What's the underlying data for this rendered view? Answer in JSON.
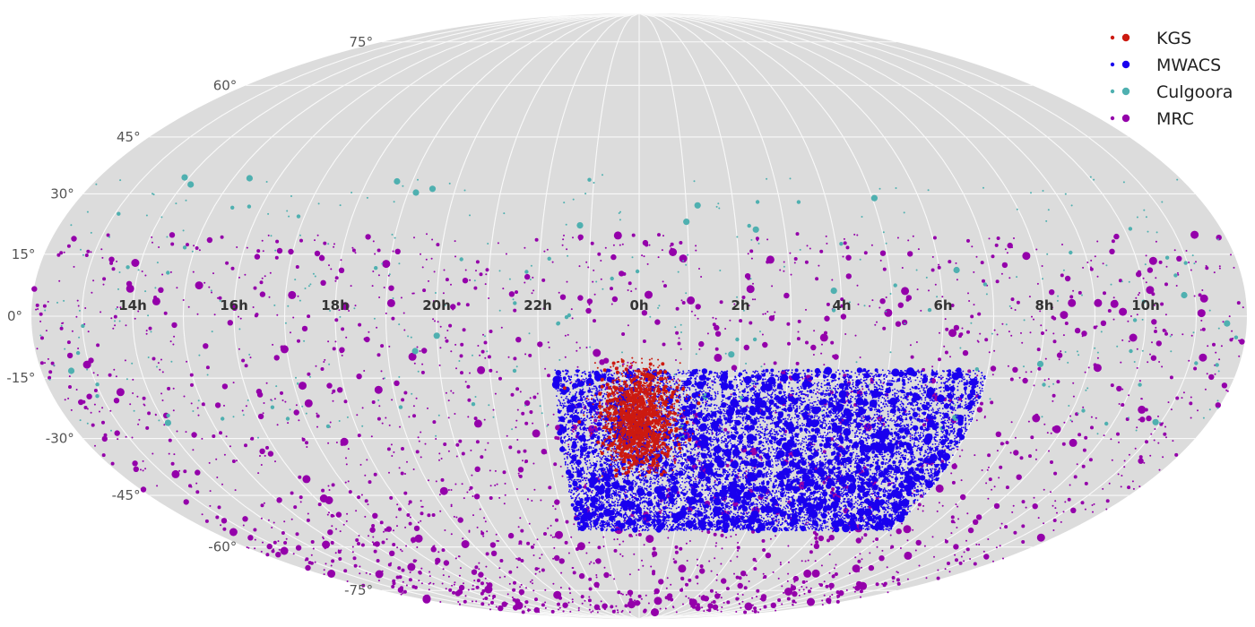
{
  "chart_data": {
    "type": "scatter",
    "projection": "mollweide",
    "background_color": "#dcdcdc",
    "grid": true,
    "legend_position": "top-right",
    "ra_tick_labels": [
      "14h",
      "16h",
      "18h",
      "20h",
      "22h",
      "0h",
      "2h",
      "4h",
      "6h",
      "8h",
      "10h"
    ],
    "ra_tick_hours": [
      14,
      16,
      18,
      20,
      22,
      0,
      2,
      4,
      6,
      8,
      10
    ],
    "dec_tick_labels": [
      "75°",
      "60°",
      "45°",
      "30°",
      "15°",
      "0°",
      "-15°",
      "-30°",
      "-45°",
      "-60°",
      "-75°"
    ],
    "dec_tick_values": [
      75,
      60,
      45,
      30,
      15,
      0,
      -15,
      -30,
      -45,
      -60,
      -75
    ],
    "series": [
      {
        "name": "MRC",
        "color": "#9400aa",
        "ra_range_h": [
          0,
          24
        ],
        "dec_range_deg": [
          -85,
          20
        ],
        "approx_points": 2600
      },
      {
        "name": "Culgoora",
        "color": "#4fb0b0",
        "ra_range_h": [
          0,
          24
        ],
        "dec_range_deg": [
          -30,
          35
        ],
        "approx_points": 420
      },
      {
        "name": "MWACS",
        "color": "#1a00ee",
        "ra_range_h": [
          22.3,
          7.0
        ],
        "dec_range_deg": [
          -55,
          -13
        ],
        "approx_points": 11000
      },
      {
        "name": "KGS",
        "color": "#cc1a10",
        "ra_range_h": [
          23.3,
          0.75
        ],
        "dec_range_deg": [
          -40,
          -10
        ],
        "approx_points": 1800
      }
    ]
  }
}
